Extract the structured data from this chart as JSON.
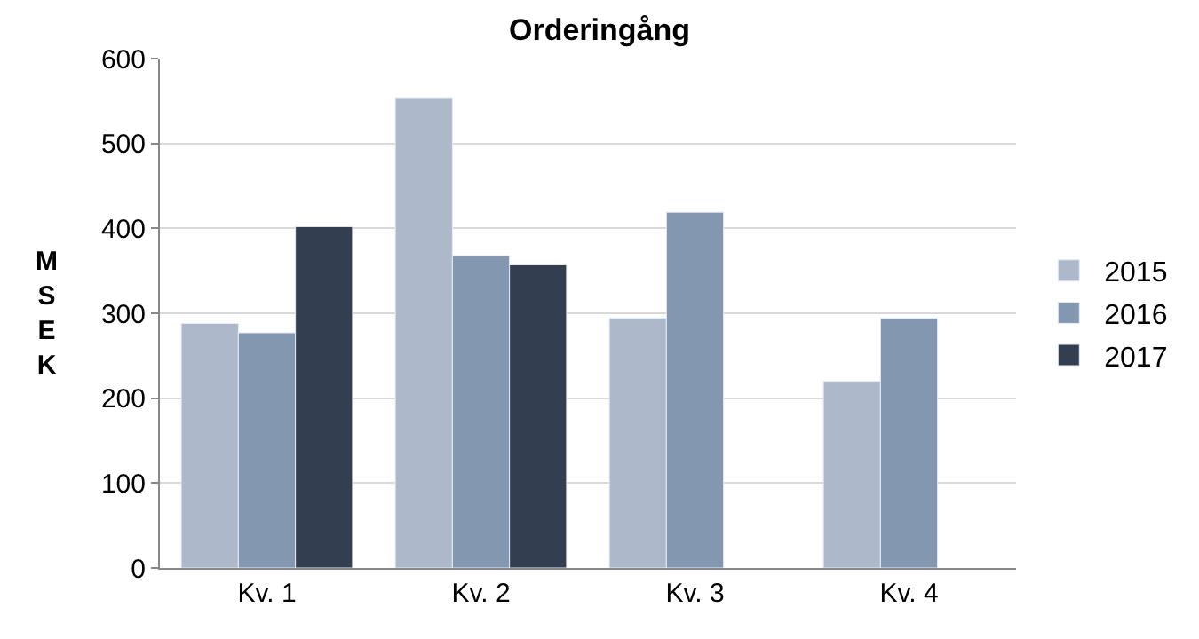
{
  "chart_data": {
    "type": "bar",
    "title": "Orderingång",
    "ylabel": "MSEK",
    "categories": [
      "Kv. 1",
      "Kv. 2",
      "Kv. 3",
      "Kv. 4"
    ],
    "series": [
      {
        "name": "2015",
        "color": "#adb9ca",
        "values": [
          288,
          554,
          294,
          220
        ]
      },
      {
        "name": "2016",
        "color": "#8497b0",
        "values": [
          277,
          368,
          419,
          294
        ]
      },
      {
        "name": "2017",
        "color": "#333f50",
        "values": [
          402,
          357,
          null,
          null
        ]
      }
    ],
    "ylim": [
      0,
      600
    ],
    "yticks": [
      0,
      100,
      200,
      300,
      400,
      500,
      600
    ],
    "grid": "y",
    "legend": "right"
  }
}
